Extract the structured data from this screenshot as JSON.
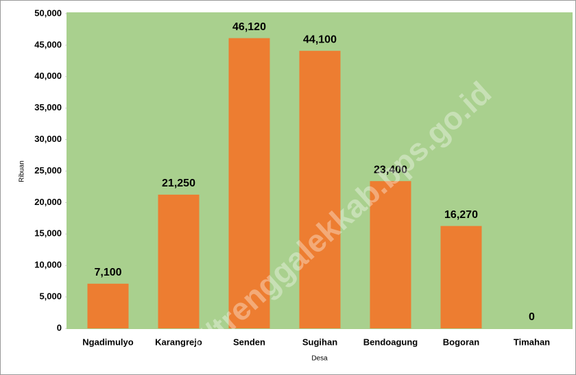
{
  "chart_data": {
    "type": "bar",
    "categories": [
      "Ngadimulyo",
      "Karangrejo",
      "Senden",
      "Sugihan",
      "Bendoagung",
      "Bogoran",
      "Timahan"
    ],
    "values": [
      7100,
      21250,
      46120,
      44100,
      23400,
      16270,
      0
    ],
    "value_labels": [
      "7,100",
      "21,250",
      "46,120",
      "44,100",
      "23,400",
      "16,270",
      "0"
    ],
    "color": "#ed7d31",
    "background": "#a9d08e",
    "x_label": "Desa",
    "y_label": "Ribuan",
    "watermark": "s://trenggalekkab.bps.go.id",
    "ylim": [
      0,
      50000
    ],
    "yticks": [
      0,
      {
        "value": 5000,
        "label": "5,000"
      },
      {
        "value": 10000,
        "label": "10,000"
      },
      {
        "value": 15000,
        "label": "15,000"
      },
      {
        "value": 20000,
        "label": "20,000"
      },
      {
        "value": 25000,
        "label": "25,000"
      },
      {
        "value": 30000,
        "label": "30,000"
      },
      {
        "value": 35000,
        "label": "35,000"
      },
      {
        "value": 40000,
        "label": "40,000"
      },
      {
        "value": 45000,
        "label": "45,000"
      },
      {
        "value": 50000,
        "label": "50,000"
      }
    ]
  }
}
